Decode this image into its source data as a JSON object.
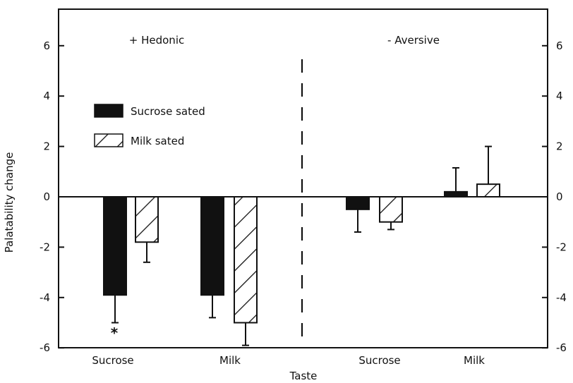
{
  "chart_data": {
    "type": "bar",
    "xlabel": "Taste",
    "ylabel": "Palatability change",
    "ylim": [
      -6,
      7
    ],
    "yticks": [
      -6,
      -4,
      -2,
      0,
      2,
      4,
      6
    ],
    "ytick_labels": [
      "-6",
      "-4",
      "-2",
      "0",
      "2",
      "4",
      "6"
    ],
    "right_axis_mirrored": true,
    "groups": [
      "+ Hedonic",
      "- Aversive"
    ],
    "categories": [
      "Sucrose",
      "Milk",
      "Sucrose",
      "Milk"
    ],
    "series": [
      {
        "name": "Sucrose sated",
        "pattern": "solid-black",
        "values": [
          -3.9,
          -3.9,
          -0.5,
          0.2
        ],
        "errors": [
          1.1,
          0.9,
          0.9,
          0.95
        ]
      },
      {
        "name": "Milk sated",
        "pattern": "diagonal-hatch",
        "values": [
          -1.8,
          -5.0,
          -1.0,
          0.5
        ],
        "errors": [
          0.8,
          0.9,
          0.3,
          1.5
        ]
      }
    ],
    "annotations": [
      "*"
    ],
    "legend_position": "upper-left",
    "grid": false
  },
  "colors": {
    "ink": "#111111",
    "background": "#ffffff"
  }
}
